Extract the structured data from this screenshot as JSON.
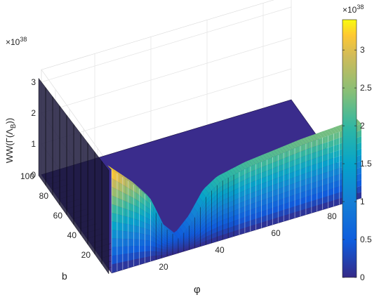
{
  "chart_data": {
    "type": "surface",
    "zlabel_main": "WW(Γ(Λ",
    "zlabel_sub": "B",
    "zlabel_end": "))",
    "xlabel": "φ",
    "ylabel": "b",
    "z_exponent": "×10",
    "z_exponent_power": "38",
    "colorbar_exponent": "×10",
    "colorbar_exponent_power": "38",
    "x_ticks": [
      "20",
      "40",
      "60",
      "80"
    ],
    "y_ticks": [
      "20",
      "40",
      "60",
      "80",
      "100"
    ],
    "z_ticks": [
      "0",
      "1",
      "2",
      "3"
    ],
    "colorbar_ticks": [
      "0",
      "0.5",
      "1",
      "1.5",
      "2",
      "2.5",
      "3"
    ],
    "x_range": [
      1,
      90
    ],
    "y_range": [
      0,
      100
    ],
    "z_range": [
      0,
      3.4
    ],
    "colorbar_range": [
      0,
      3.4
    ],
    "colormap": "parula",
    "grid": true,
    "profile_phi": [
      1,
      5,
      10,
      15,
      20,
      25,
      30,
      35,
      40,
      50,
      60,
      70,
      80,
      90
    ],
    "profile_value": [
      3.35,
      3.0,
      2.55,
      2.0,
      0.95,
      0.45,
      0.9,
      1.6,
      1.9,
      2.1,
      2.2,
      2.3,
      2.35,
      2.4
    ]
  }
}
